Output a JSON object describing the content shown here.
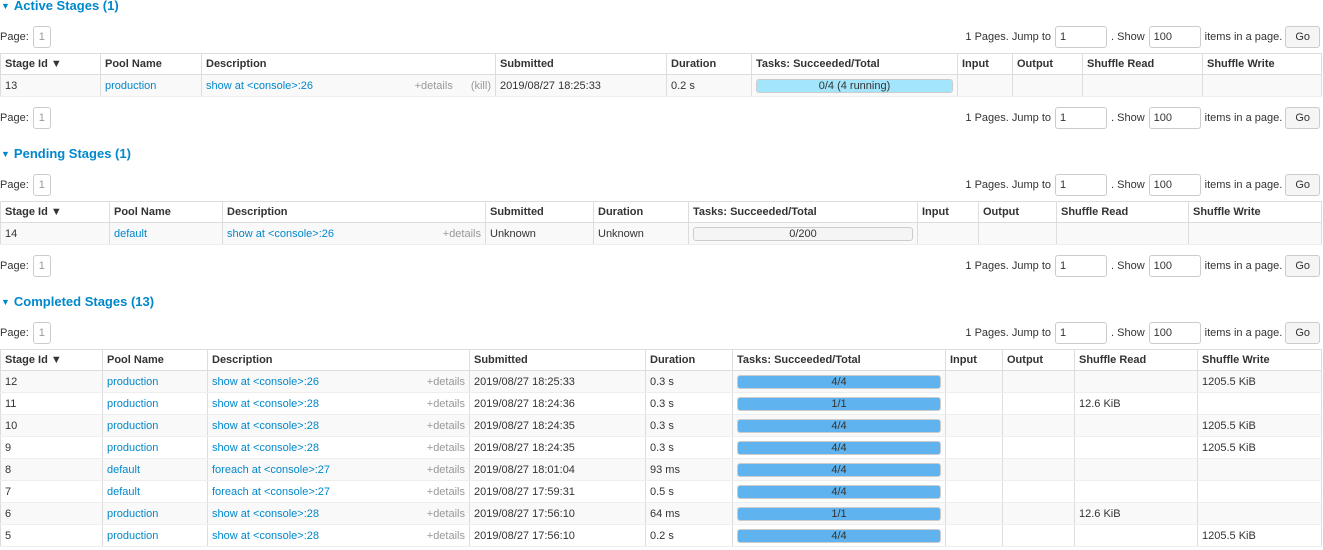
{
  "pager": {
    "page_label": "Page:",
    "page": "1",
    "pages_text": "1 Pages. Jump to",
    "jump_value": "1",
    "show_text": ". Show",
    "show_value": "100",
    "items_text": "items in a page.",
    "go": "Go"
  },
  "columns": [
    "Stage Id ▼",
    "Pool Name",
    "Description",
    "Submitted",
    "Duration",
    "Tasks: Succeeded/Total",
    "Input",
    "Output",
    "Shuffle Read",
    "Shuffle Write"
  ],
  "details_label": "+details",
  "kill_label": "(kill)",
  "colors": {
    "accent": "#0088cc",
    "bar_complete": "#5fb3ef",
    "bar_running": "#a3e5fb"
  },
  "sections": [
    {
      "key": "active",
      "title": "Active Stages (1)",
      "widths": [
        100,
        101,
        294,
        171,
        85,
        206,
        55,
        70,
        120,
        119
      ],
      "rows": [
        {
          "id": "13",
          "pool": "production",
          "desc": "show at <console>:26",
          "kill": true,
          "submitted": "2019/08/27 18:25:33",
          "duration": "0.2 s",
          "tasks": "0/4 (4 running)",
          "succeeded": 0,
          "running": 4,
          "total": 4,
          "input": "",
          "output": "",
          "shuffle_read": "",
          "shuffle_write": ""
        }
      ]
    },
    {
      "key": "pending",
      "title": "Pending Stages (1)",
      "widths": [
        109,
        113,
        263,
        108,
        95,
        229,
        61,
        78,
        132,
        133
      ],
      "rows": [
        {
          "id": "14",
          "pool": "default",
          "desc": "show at <console>:26",
          "submitted": "Unknown",
          "duration": "Unknown",
          "tasks": "0/200",
          "succeeded": 0,
          "running": 0,
          "total": 200,
          "input": "",
          "output": "",
          "shuffle_read": "",
          "shuffle_write": ""
        }
      ]
    },
    {
      "key": "completed",
      "title": "Completed Stages (13)",
      "widths": [
        102,
        105,
        262,
        176,
        87,
        213,
        57,
        72,
        123,
        124
      ],
      "rows": [
        {
          "id": "12",
          "pool": "production",
          "desc": "show at <console>:26",
          "submitted": "2019/08/27 18:25:33",
          "duration": "0.3 s",
          "tasks": "4/4",
          "succeeded": 4,
          "running": 0,
          "total": 4,
          "input": "",
          "output": "",
          "shuffle_read": "",
          "shuffle_write": "1205.5 KiB"
        },
        {
          "id": "11",
          "pool": "production",
          "desc": "show at <console>:28",
          "submitted": "2019/08/27 18:24:36",
          "duration": "0.3 s",
          "tasks": "1/1",
          "succeeded": 1,
          "running": 0,
          "total": 1,
          "input": "",
          "output": "",
          "shuffle_read": "12.6 KiB",
          "shuffle_write": ""
        },
        {
          "id": "10",
          "pool": "production",
          "desc": "show at <console>:28",
          "submitted": "2019/08/27 18:24:35",
          "duration": "0.3 s",
          "tasks": "4/4",
          "succeeded": 4,
          "running": 0,
          "total": 4,
          "input": "",
          "output": "",
          "shuffle_read": "",
          "shuffle_write": "1205.5 KiB"
        },
        {
          "id": "9",
          "pool": "production",
          "desc": "show at <console>:28",
          "submitted": "2019/08/27 18:24:35",
          "duration": "0.3 s",
          "tasks": "4/4",
          "succeeded": 4,
          "running": 0,
          "total": 4,
          "input": "",
          "output": "",
          "shuffle_read": "",
          "shuffle_write": "1205.5 KiB"
        },
        {
          "id": "8",
          "pool": "default",
          "desc": "foreach at <console>:27",
          "submitted": "2019/08/27 18:01:04",
          "duration": "93 ms",
          "tasks": "4/4",
          "succeeded": 4,
          "running": 0,
          "total": 4,
          "input": "",
          "output": "",
          "shuffle_read": "",
          "shuffle_write": ""
        },
        {
          "id": "7",
          "pool": "default",
          "desc": "foreach at <console>:27",
          "submitted": "2019/08/27 17:59:31",
          "duration": "0.5 s",
          "tasks": "4/4",
          "succeeded": 4,
          "running": 0,
          "total": 4,
          "input": "",
          "output": "",
          "shuffle_read": "",
          "shuffle_write": ""
        },
        {
          "id": "6",
          "pool": "production",
          "desc": "show at <console>:28",
          "submitted": "2019/08/27 17:56:10",
          "duration": "64 ms",
          "tasks": "1/1",
          "succeeded": 1,
          "running": 0,
          "total": 1,
          "input": "",
          "output": "",
          "shuffle_read": "12.6 KiB",
          "shuffle_write": ""
        },
        {
          "id": "5",
          "pool": "production",
          "desc": "show at <console>:28",
          "submitted": "2019/08/27 17:56:10",
          "duration": "0.2 s",
          "tasks": "4/4",
          "succeeded": 4,
          "running": 0,
          "total": 4,
          "input": "",
          "output": "",
          "shuffle_read": "",
          "shuffle_write": "1205.5 KiB"
        }
      ]
    }
  ]
}
